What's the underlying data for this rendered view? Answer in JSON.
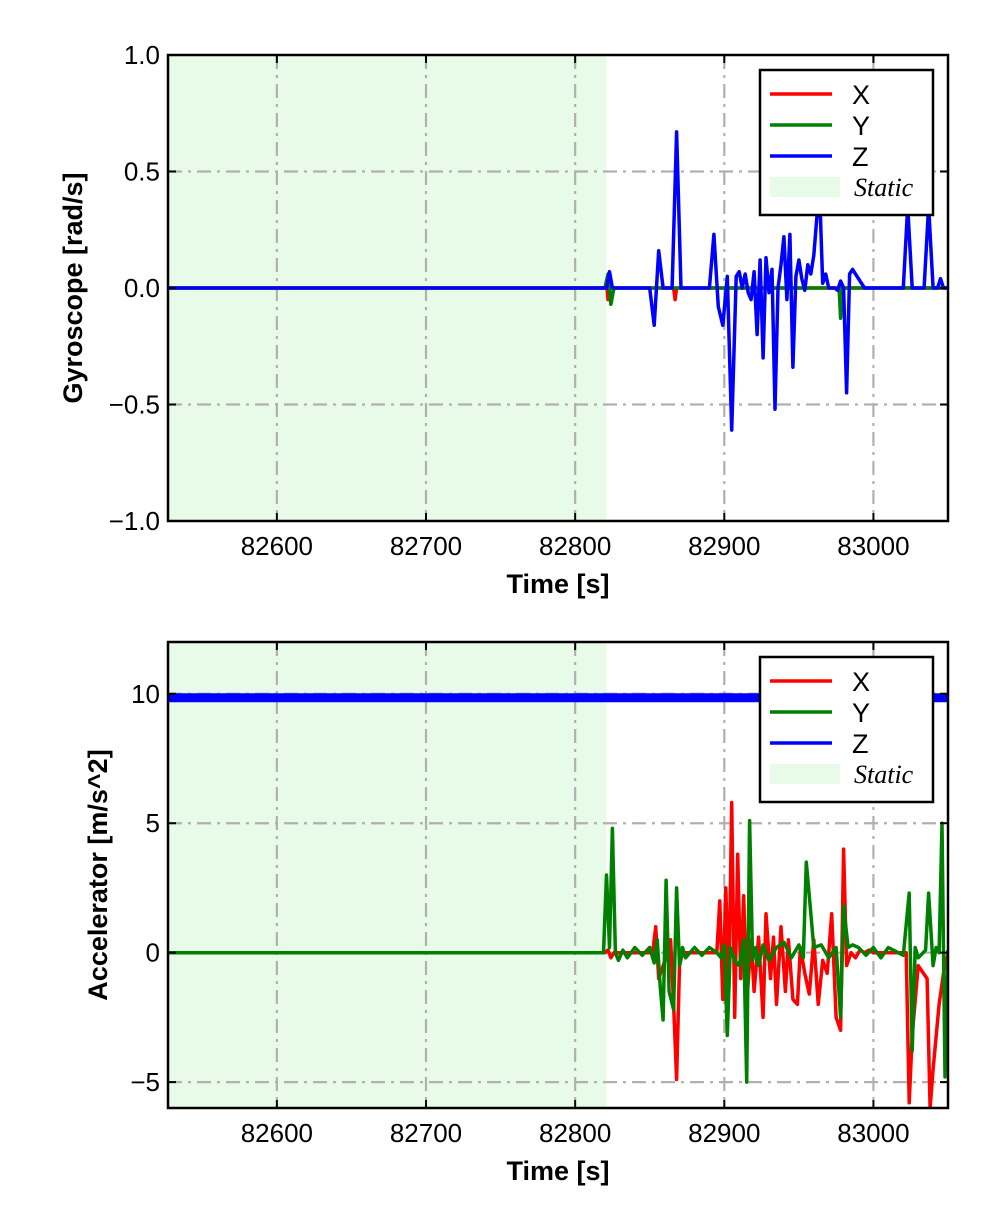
{
  "chart_data": [
    {
      "type": "line",
      "ylabel": "Gyroscope [rad/s]",
      "xlabel": "Time [s]",
      "xlim": [
        82527,
        83050
      ],
      "ylim": [
        -1.0,
        1.0
      ],
      "xticks": [
        82600,
        82700,
        82800,
        82900,
        83000
      ],
      "xtick_labels": [
        "82600",
        "82700",
        "82800",
        "82900",
        "83000"
      ],
      "yticks": [
        -1.0,
        -0.5,
        0.0,
        0.5,
        1.0
      ],
      "ytick_labels": [
        "−1.0",
        "−0.5",
        "0.0",
        "0.5",
        "1.0"
      ],
      "grid": true,
      "legend_position": "top-right",
      "static_span": [
        82527,
        82821
      ],
      "legend": [
        "X",
        "Y",
        "Z",
        "Static"
      ],
      "colors": {
        "X": "#ff0000",
        "Y": "#008000",
        "Z": "#0000ff",
        "Static": "#e8fbe8"
      },
      "series": [
        {
          "name": "X",
          "color": "#ff0000",
          "x": [
            82527,
            82820,
            82821,
            82822,
            82823,
            82824,
            82825,
            82866,
            82867,
            82868,
            82869,
            83050
          ],
          "y": [
            0,
            0,
            0.03,
            -0.05,
            0.02,
            0,
            0,
            0,
            -0.05,
            0,
            0,
            0
          ]
        },
        {
          "name": "Y",
          "color": "#008000",
          "x": [
            82527,
            82820,
            82822,
            82824,
            82826,
            82977,
            82978,
            82979,
            83050
          ],
          "y": [
            0,
            0,
            0.06,
            -0.07,
            0,
            0,
            -0.13,
            0,
            0
          ]
        },
        {
          "name": "Z",
          "color": "#0000ff",
          "x": [
            82527,
            82821,
            82823,
            82825,
            82850,
            82853,
            82856,
            82859,
            82865,
            82868,
            82871,
            82890,
            82893,
            82896,
            82899,
            82902,
            82905,
            82908,
            82910,
            82912,
            82914,
            82916,
            82918,
            82920,
            82922,
            82924,
            82926,
            82928,
            82930,
            82932,
            82934,
            82936,
            82938,
            82940,
            82942,
            82944,
            82946,
            82948,
            82950,
            82952,
            82954,
            82956,
            82958,
            82960,
            82962,
            82964,
            82966,
            82968,
            82970,
            82972,
            82974,
            82976,
            82978,
            82980,
            82982,
            82984,
            82986,
            82994,
            82997,
            83000,
            83003,
            83005,
            83020,
            83023,
            83026,
            83029,
            83034,
            83037,
            83040,
            83043,
            83045,
            83047,
            83050
          ],
          "y": [
            0,
            0,
            0.07,
            0,
            0,
            -0.16,
            0.16,
            0,
            0,
            0.67,
            0,
            0,
            0.23,
            -0.08,
            -0.16,
            0.05,
            -0.61,
            0.05,
            0.07,
            0.0,
            0.06,
            -0.02,
            -0.05,
            0.07,
            -0.2,
            0.12,
            -0.3,
            0.13,
            -0.02,
            0.08,
            -0.52,
            0.0,
            0.1,
            0.22,
            -0.05,
            0.23,
            -0.34,
            0.05,
            0.12,
            0.04,
            -0.01,
            0.1,
            0.06,
            0.14,
            0.3,
            0.4,
            0.02,
            0.06,
            0,
            0,
            0,
            -0.01,
            0.03,
            0.0,
            -0.45,
            0.06,
            0.08,
            0,
            0,
            0,
            0,
            0,
            0,
            0.35,
            0,
            0,
            0,
            0.35,
            0,
            0,
            0.04,
            0,
            0
          ]
        }
      ]
    },
    {
      "type": "line",
      "ylabel": "Accelerator [m/s^2]",
      "xlabel": "Time [s]",
      "xlim": [
        82527,
        83050
      ],
      "ylim": [
        -6.0,
        12.0
      ],
      "xticks": [
        82600,
        82700,
        82800,
        82900,
        83000
      ],
      "xtick_labels": [
        "82600",
        "82700",
        "82800",
        "82900",
        "83000"
      ],
      "yticks": [
        -5,
        0,
        5,
        10
      ],
      "ytick_labels": [
        "−5",
        "0",
        "5",
        "10"
      ],
      "grid": true,
      "legend_position": "top-right",
      "static_span": [
        82527,
        82821
      ],
      "legend": [
        "X",
        "Y",
        "Z",
        "Static"
      ],
      "colors": {
        "X": "#ff0000",
        "Y": "#008000",
        "Z": "#0000ff",
        "Static": "#e8fbe8"
      },
      "series": [
        {
          "name": "Z",
          "color": "#0000ff",
          "x": [
            82527,
            83050
          ],
          "y": [
            9.85,
            9.85
          ]
        },
        {
          "name": "X",
          "color": "#ff0000",
          "x": [
            82527,
            82820,
            82822,
            82824,
            82826,
            82852,
            82854,
            82856,
            82862,
            82864,
            82866,
            82868,
            82870,
            82872,
            82895,
            82897,
            82899,
            82901,
            82903,
            82905,
            82907,
            82909,
            82911,
            82913,
            82915,
            82918,
            82920,
            82923,
            82926,
            82928,
            82931,
            82933,
            82935,
            82938,
            82941,
            82943,
            82946,
            82949,
            82951,
            82954,
            82957,
            82960,
            82963,
            82966,
            82969,
            82972,
            82975,
            82978,
            82980,
            82982,
            82985,
            82988,
            82991,
            82994,
            82997,
            83000,
            83022,
            83024,
            83026,
            83030,
            83036,
            83038,
            83040,
            83044,
            83047,
            83050
          ],
          "y": [
            0,
            0,
            0.1,
            -0.2,
            0,
            0,
            1.0,
            -1.0,
            0,
            0.5,
            -2.0,
            -4.9,
            -0.5,
            0,
            0,
            2.0,
            -1.8,
            2.5,
            -1.5,
            5.8,
            -2.5,
            3.8,
            -1.0,
            2.2,
            -2.0,
            0.5,
            -1.5,
            0.6,
            -2.5,
            1.5,
            -1.0,
            0.6,
            -2.0,
            1.0,
            -1.5,
            0.5,
            -1.8,
            -2.0,
            0.2,
            -0.8,
            -1.6,
            0.5,
            -2.0,
            -0.3,
            -0.8,
            1.5,
            -2.5,
            -3.0,
            4.0,
            -0.5,
            0,
            -0.2,
            0.1,
            0,
            0.1,
            0,
            0,
            -5.8,
            -3.2,
            -0.5,
            -1.0,
            -6.0,
            -4.5,
            -2.0,
            -0.8,
            0
          ]
        },
        {
          "name": "Y",
          "color": "#008000",
          "x": [
            82527,
            82819,
            82821,
            82823,
            82825,
            82827,
            82829,
            82832,
            82835,
            82840,
            82845,
            82850,
            82853,
            82855,
            82857,
            82859,
            82861,
            82863,
            82866,
            82868,
            82870,
            82872,
            82874,
            82880,
            82885,
            82890,
            82895,
            82898,
            82900,
            82902,
            82904,
            82907,
            82910,
            82913,
            82915,
            82917,
            82919,
            82921,
            82923,
            82926,
            82930,
            82935,
            82940,
            82945,
            82950,
            82953,
            82955,
            82960,
            82965,
            82970,
            82975,
            82978,
            82980,
            82983,
            82986,
            82990,
            82995,
            83000,
            83005,
            83010,
            83020,
            83024,
            83026,
            83028,
            83030,
            83035,
            83037,
            83040,
            83042,
            83044,
            83046,
            83048,
            83050
          ],
          "y": [
            0,
            0,
            3.0,
            0.2,
            4.8,
            0.0,
            -0.3,
            0.1,
            -0.2,
            0.2,
            -0.1,
            0.2,
            -0.4,
            0.5,
            -1.3,
            -2.6,
            2.8,
            -1.5,
            -2.2,
            2.5,
            -0.5,
            0.2,
            -0.2,
            0.2,
            -0.1,
            0.2,
            0.0,
            -0.2,
            0.3,
            -3.2,
            0.2,
            -0.3,
            -0.5,
            0.5,
            -5.0,
            5.1,
            -0.3,
            0.2,
            -0.5,
            0.3,
            -0.3,
            0.2,
            0.4,
            -0.2,
            0.3,
            -0.2,
            3.5,
            0.2,
            0.3,
            -0.2,
            0.2,
            -2.5,
            1.8,
            0.2,
            0.3,
            0.2,
            -0.1,
            0.2,
            -0.2,
            0.2,
            -0.1,
            2.3,
            -3.8,
            0.2,
            -0.2,
            0.1,
            2.3,
            -0.5,
            0.2,
            0.0,
            5.0,
            -4.8,
            0.1
          ]
        }
      ]
    }
  ]
}
